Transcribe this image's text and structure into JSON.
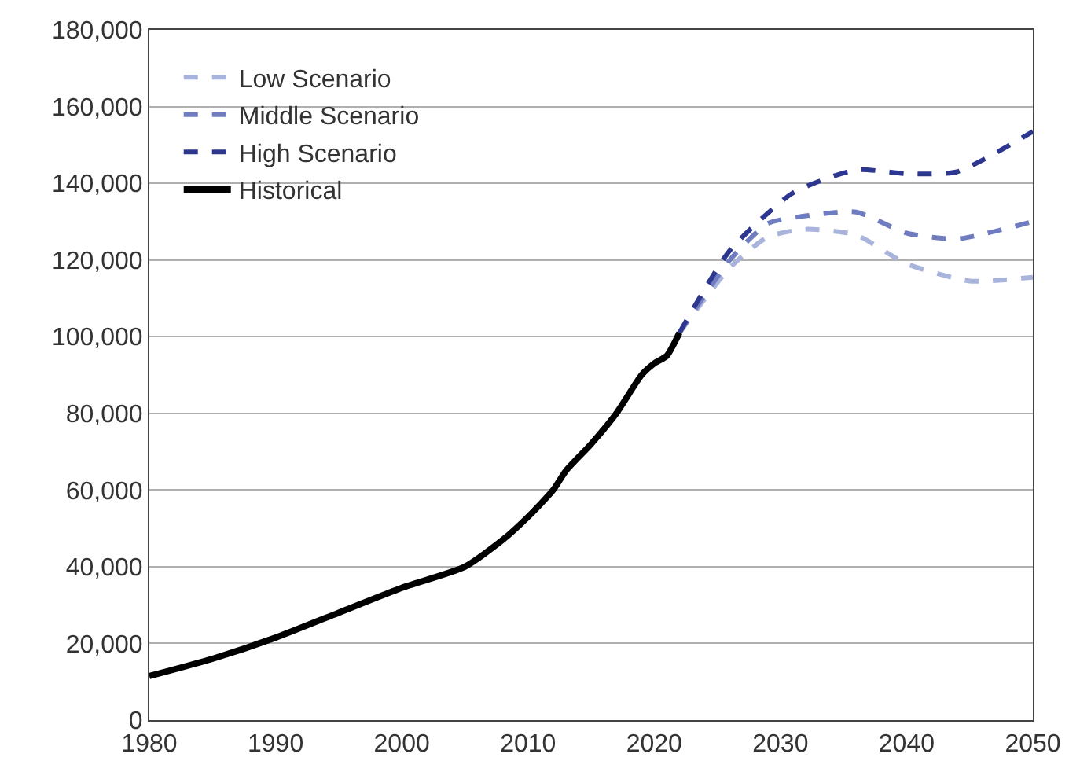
{
  "chart_data": {
    "type": "line",
    "xlim": [
      1980,
      2050
    ],
    "xticks": [
      1980,
      1990,
      2000,
      2010,
      2020,
      2030,
      2040,
      2050
    ],
    "ylim": [
      0,
      180000
    ],
    "yticks": [
      {
        "value": 0,
        "label": "0"
      },
      {
        "value": 20000,
        "label": "20,000"
      },
      {
        "value": 40000,
        "label": "40,000"
      },
      {
        "value": 60000,
        "label": "60,000"
      },
      {
        "value": 80000,
        "label": "80,000"
      },
      {
        "value": 100000,
        "label": "100,000"
      },
      {
        "value": 120000,
        "label": "120,000"
      },
      {
        "value": 140000,
        "label": "140,000"
      },
      {
        "value": 160000,
        "label": "160,000"
      },
      {
        "value": 180000,
        "label": "180,000"
      }
    ],
    "grid": "y",
    "legend": "top left",
    "series": [
      {
        "name": "Low Scenario",
        "color": "#a9b4dc",
        "line_style": "dashed",
        "x": [
          2022,
          2026,
          2029,
          2032,
          2036,
          2040,
          2045,
          2050
        ],
        "values": [
          101000,
          118000,
          126000,
          128000,
          126500,
          119000,
          114500,
          115500
        ]
      },
      {
        "name": "Middle Scenario",
        "color": "#6f7cc0",
        "line_style": "dashed",
        "x": [
          2022,
          2026,
          2029,
          2032,
          2036,
          2040,
          2044,
          2050
        ],
        "values": [
          101000,
          120000,
          129500,
          131500,
          132500,
          127000,
          125500,
          130000
        ]
      },
      {
        "name": "High Scenario",
        "color": "#2e3790",
        "line_style": "dashed",
        "x": [
          2022,
          2026,
          2031,
          2036,
          2040,
          2044,
          2050
        ],
        "values": [
          101000,
          122500,
          137500,
          143500,
          142500,
          143000,
          153500
        ]
      },
      {
        "name": "Historical",
        "color": "#000000",
        "line_style": "solid",
        "x": [
          1980,
          1985,
          1990,
          1995,
          2000,
          2005,
          2008,
          2010,
          2012,
          2013,
          2015,
          2017,
          2019,
          2020,
          2021,
          2022
        ],
        "values": [
          11500,
          16000,
          21500,
          28000,
          34500,
          40000,
          47000,
          53000,
          60000,
          65000,
          72000,
          80000,
          90000,
          93000,
          95000,
          101000
        ]
      }
    ]
  }
}
